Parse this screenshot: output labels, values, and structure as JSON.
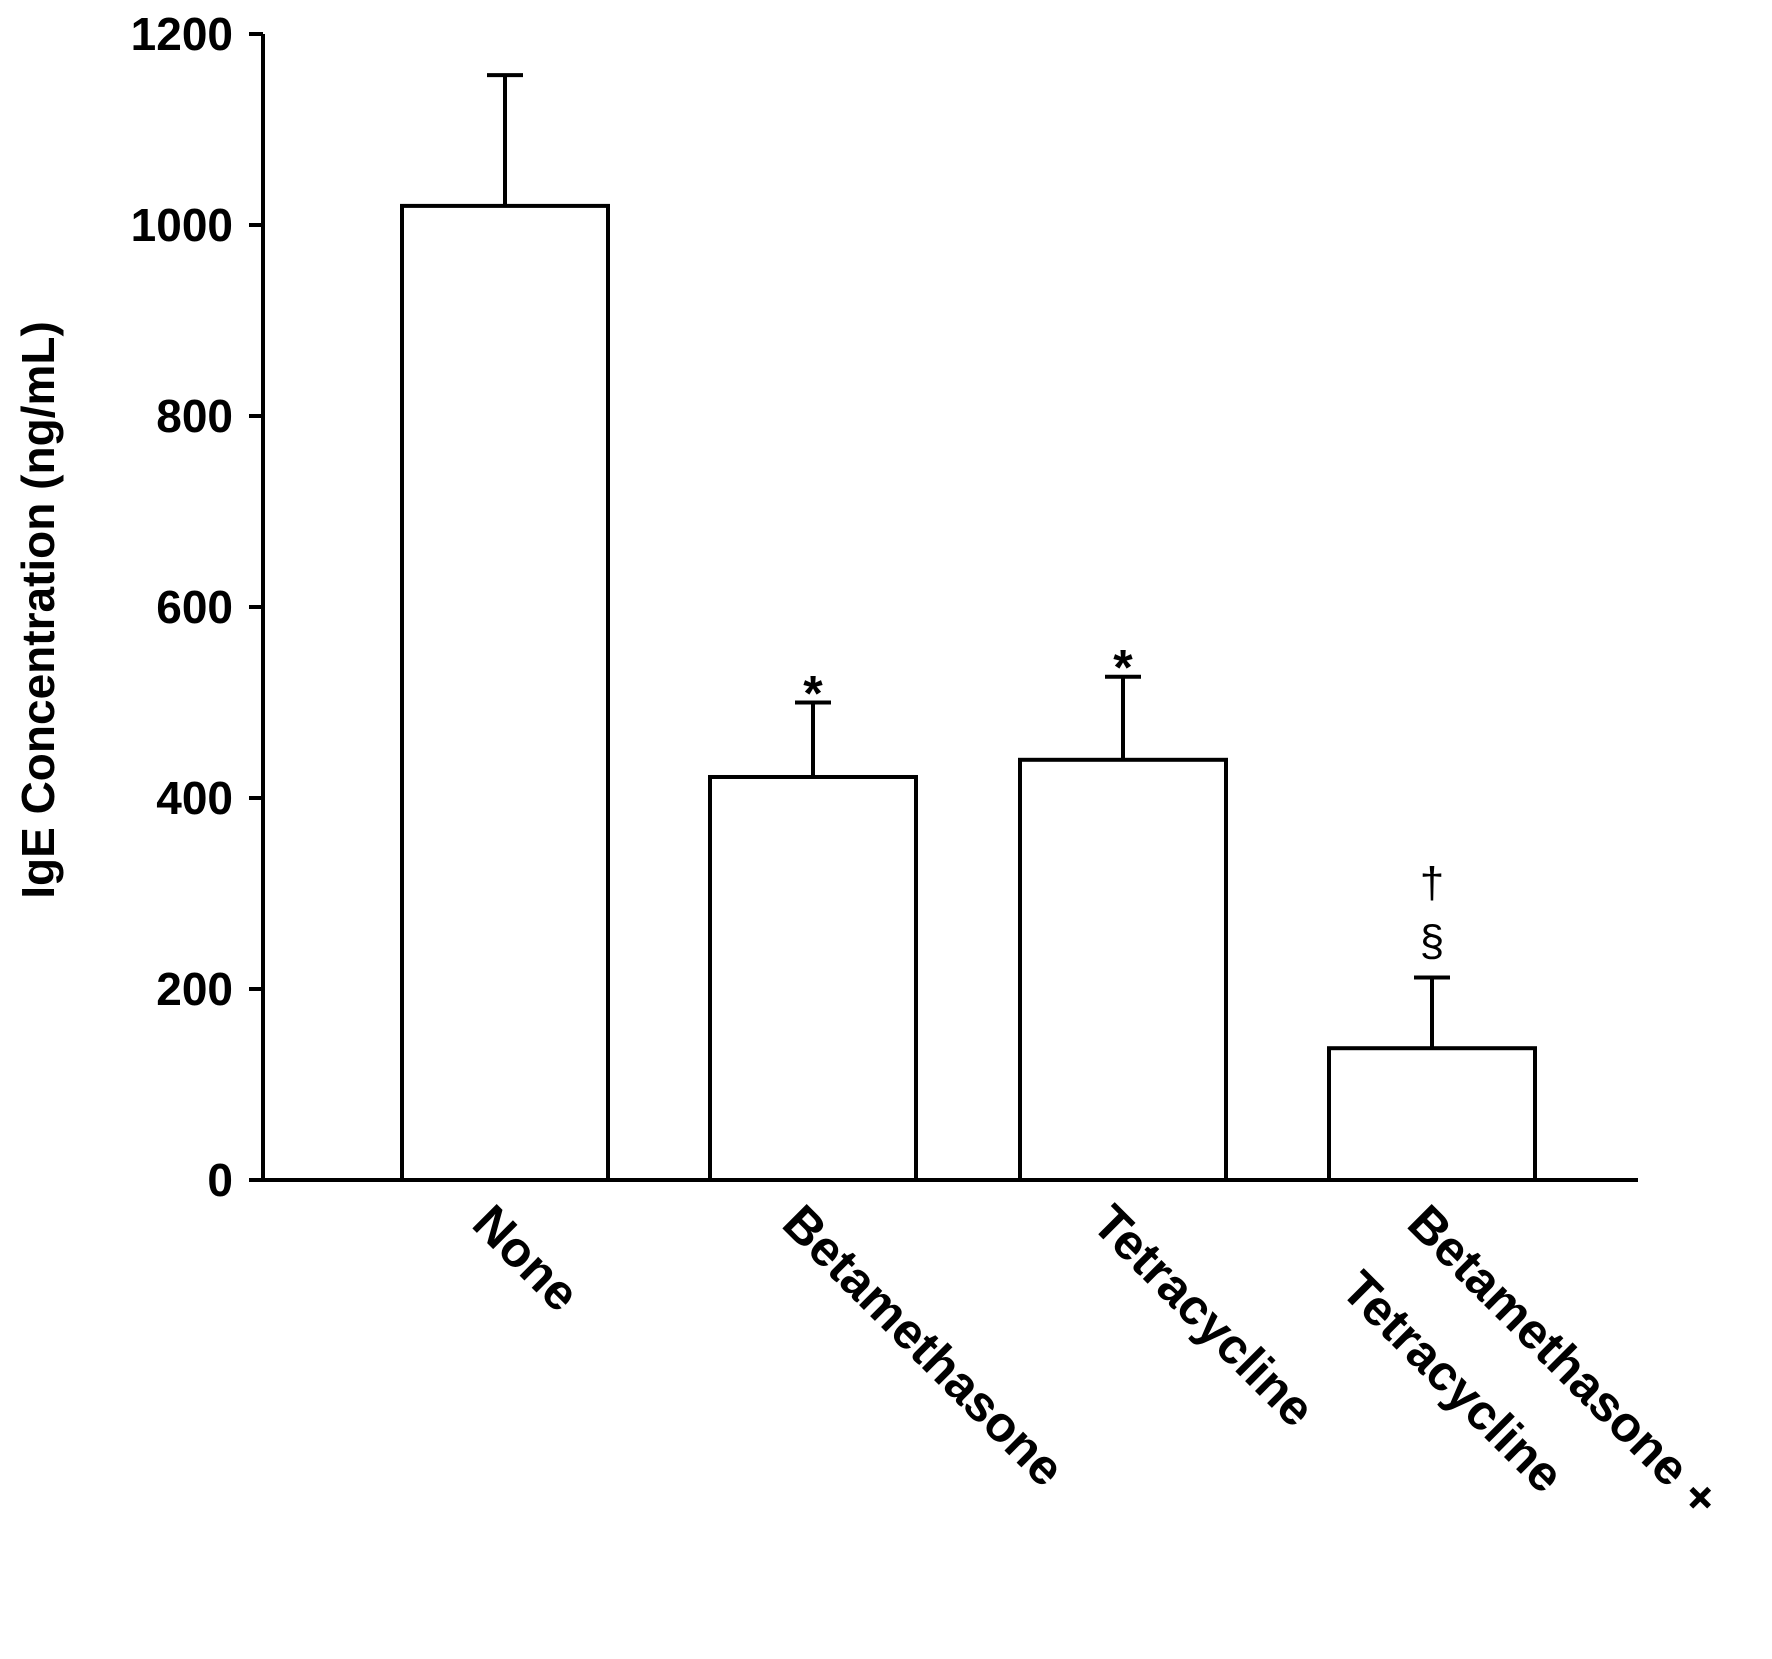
{
  "chart_data": {
    "type": "bar",
    "title": "",
    "xlabel": "",
    "ylabel": "IgE Concentration (ng/mL)",
    "ylim": [
      0,
      1200
    ],
    "yticks": [
      0,
      200,
      400,
      600,
      800,
      1000,
      1200
    ],
    "grid": false,
    "legend": "none",
    "categories": [
      "None",
      "Betamethasone",
      "Tetracycline",
      "Betamethasone + Tetracycline"
    ],
    "category_label_lines": [
      [
        "None"
      ],
      [
        "Betamethasone"
      ],
      [
        "Tetracycline"
      ],
      [
        "Betamethasone +",
        "Tetracycline"
      ]
    ],
    "values": [
      1020,
      422,
      440,
      138
    ],
    "error_upper": [
      1157,
      500,
      527,
      212
    ],
    "annotations": [
      [],
      [
        "*"
      ],
      [
        "*"
      ],
      [
        "§",
        "†"
      ]
    ],
    "bar_fill": "#ffffff",
    "bar_stroke": "#000000"
  }
}
